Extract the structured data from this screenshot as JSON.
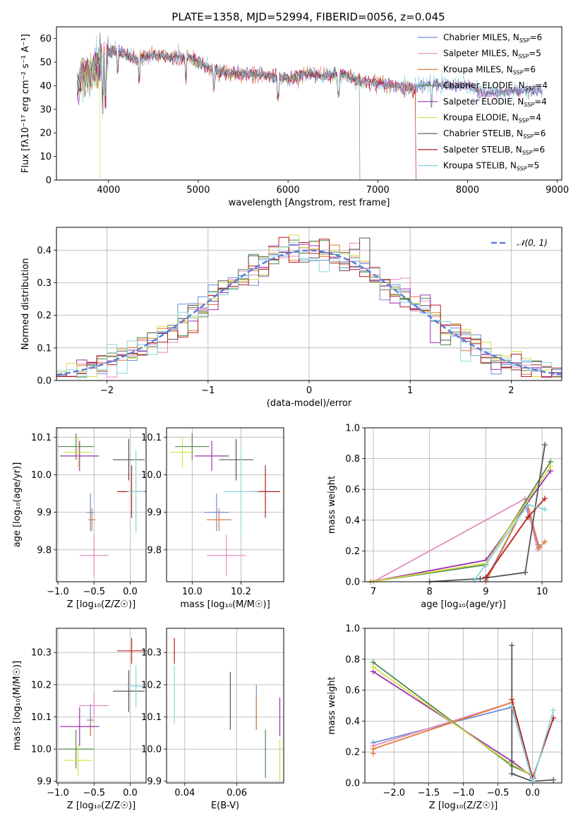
{
  "figure": {
    "title": "PLATE=1358, MJD=52994, FIBERID=0056, z=0.045"
  },
  "models": [
    {
      "name": "Chabrier MILES",
      "nssp": "6",
      "color": "#6a8fd4"
    },
    {
      "name": "Salpeter MILES",
      "nssp": "5",
      "color": "#e58bc0"
    },
    {
      "name": "Kroupa MILES",
      "nssp": "6",
      "color": "#e07b3c"
    },
    {
      "name": "Chabrier ELODIE",
      "nssp": "4",
      "color": "#4f8a4f"
    },
    {
      "name": "Salpeter ELODIE",
      "nssp": "4",
      "color": "#9b30b4"
    },
    {
      "name": "Kroupa ELODIE",
      "nssp": "4",
      "color": "#d8dd45"
    },
    {
      "name": "Chabrier STELIB",
      "nssp": "6",
      "color": "#555555"
    },
    {
      "name": "Salpeter STELIB",
      "nssp": "6",
      "color": "#b81c1c"
    },
    {
      "name": "Kroupa STELIB",
      "nssp": "5",
      "color": "#88d6dc"
    }
  ],
  "chart_data": [
    {
      "id": "spectrum",
      "type": "line",
      "title": "PLATE=1358, MJD=52994, FIBERID=0056, z=0.045",
      "xlabel": "wavelength [Angstrom, rest frame]",
      "ylabel": "Flux [fλ10⁻¹⁷ erg cm⁻² s⁻¹ A⁻¹]",
      "xlim": [
        3420,
        9050
      ],
      "ylim": [
        0,
        65
      ],
      "xticks": [
        4000,
        5000,
        6000,
        7000,
        8000,
        9000
      ],
      "yticks": [
        0,
        10,
        20,
        30,
        40,
        50,
        60
      ],
      "legend_position": "top-right",
      "continuum": [
        [
          3650,
          40
        ],
        [
          3700,
          44
        ],
        [
          3800,
          47
        ],
        [
          3900,
          50
        ],
        [
          4000,
          54
        ],
        [
          4100,
          55
        ],
        [
          4200,
          53
        ],
        [
          4300,
          51
        ],
        [
          4400,
          52
        ],
        [
          4500,
          53
        ],
        [
          4700,
          52
        ],
        [
          4900,
          52
        ],
        [
          5000,
          50
        ],
        [
          5200,
          46
        ],
        [
          5400,
          45
        ],
        [
          5600,
          45
        ],
        [
          5800,
          44
        ],
        [
          6000,
          43
        ],
        [
          6200,
          45
        ],
        [
          6400,
          44
        ],
        [
          6600,
          45
        ],
        [
          6800,
          42
        ],
        [
          7000,
          41
        ],
        [
          7200,
          40
        ],
        [
          7400,
          39
        ],
        [
          7600,
          41
        ],
        [
          7800,
          40
        ],
        [
          8000,
          40
        ],
        [
          8200,
          37
        ],
        [
          8400,
          37
        ],
        [
          8600,
          38
        ],
        [
          8800,
          38
        ]
      ],
      "dropouts": [
        {
          "model": "Kroupa ELODIE",
          "x": 3905
        },
        {
          "model": "Chabrier ELODIE",
          "x": 6800
        },
        {
          "model": "Salpeter STELIB",
          "x": 7420
        },
        {
          "model": "Kroupa MILES",
          "x": 7420
        }
      ]
    },
    {
      "id": "residuals",
      "type": "bar",
      "xlabel": "(data-model)/error",
      "ylabel": "Normed distribution",
      "xlim": [
        -2.5,
        2.5
      ],
      "ylim": [
        0,
        0.47
      ],
      "xticks": [
        -2,
        -1,
        0,
        1,
        2
      ],
      "yticks": [
        0.0,
        0.1,
        0.2,
        0.3,
        0.4
      ],
      "bin_width": 0.1,
      "reference_curve": "𝒩(0, 1)",
      "reference_color": "#5b7fd6",
      "legend_position": "top-right"
    },
    {
      "id": "age-vs-Z",
      "type": "scatter",
      "xlabel": "Z [log₁₀(Z/Z☉)]",
      "ylabel": "age  [log₁₀(age/yr)]",
      "xlim": [
        -1.02,
        0.22
      ],
      "ylim": [
        9.715,
        10.125
      ],
      "xticks": [
        -1.0,
        -0.5,
        0.0
      ],
      "xticklabels": [
        "−1.0",
        "−0.5",
        "0.0"
      ],
      "yticks": [
        9.8,
        9.9,
        10.0,
        10.1
      ],
      "points": [
        {
          "model": "Chabrier MILES",
          "x": -0.55,
          "xerr": 0.05,
          "y": 9.9,
          "yerr": 0.05
        },
        {
          "model": "Salpeter MILES",
          "x": -0.5,
          "xerr": 0.2,
          "y": 9.785,
          "yerr": 0.055
        },
        {
          "model": "Kroupa MILES",
          "x": -0.53,
          "xerr": 0.05,
          "y": 9.88,
          "yerr": 0.03
        },
        {
          "model": "Chabrier ELODIE",
          "x": -0.75,
          "xerr": 0.25,
          "y": 10.075,
          "yerr": 0.035
        },
        {
          "model": "Salpeter ELODIE",
          "x": -0.7,
          "xerr": 0.27,
          "y": 10.05,
          "yerr": 0.04
        },
        {
          "model": "Kroupa ELODIE",
          "x": -0.72,
          "xerr": 0.2,
          "y": 10.06,
          "yerr": 0.04
        },
        {
          "model": "Chabrier STELIB",
          "x": -0.02,
          "xerr": 0.22,
          "y": 10.04,
          "yerr": 0.055
        },
        {
          "model": "Salpeter STELIB",
          "x": 0.02,
          "xerr": 0.2,
          "y": 9.955,
          "yerr": 0.07
        },
        {
          "model": "Kroupa STELIB",
          "x": 0.08,
          "xerr": 0.12,
          "y": 9.955,
          "yerr": 0.11
        }
      ]
    },
    {
      "id": "age-vs-mass",
      "type": "scatter",
      "xlabel": "mass [log₁₀(M/M☉)]",
      "ylabel": "",
      "xlim": [
        9.895,
        10.375
      ],
      "ylim": [
        9.715,
        10.125
      ],
      "xticks": [
        10.0,
        10.2
      ],
      "xticklabels": [
        "10.0",
        "10.2"
      ],
      "yticks": [
        9.8,
        9.9,
        10.0,
        10.1
      ],
      "points": [
        {
          "model": "Chabrier MILES",
          "x": 10.1,
          "xerr": 0.05,
          "y": 9.9,
          "yerr": 0.05
        },
        {
          "model": "Salpeter MILES",
          "x": 10.14,
          "xerr": 0.08,
          "y": 9.785,
          "yerr": 0.055
        },
        {
          "model": "Kroupa MILES",
          "x": 10.11,
          "xerr": 0.05,
          "y": 9.88,
          "yerr": 0.03
        },
        {
          "model": "Chabrier ELODIE",
          "x": 10.0,
          "xerr": 0.07,
          "y": 10.075,
          "yerr": 0.035
        },
        {
          "model": "Salpeter ELODIE",
          "x": 10.08,
          "xerr": 0.07,
          "y": 10.05,
          "yerr": 0.04
        },
        {
          "model": "Kroupa ELODIE",
          "x": 9.96,
          "xerr": 0.05,
          "y": 10.06,
          "yerr": 0.04
        },
        {
          "model": "Chabrier STELIB",
          "x": 10.18,
          "xerr": 0.07,
          "y": 10.04,
          "yerr": 0.055
        },
        {
          "model": "Salpeter STELIB",
          "x": 10.3,
          "xerr": 0.06,
          "y": 9.955,
          "yerr": 0.07
        },
        {
          "model": "Kroupa STELIB",
          "x": 10.2,
          "xerr": 0.07,
          "y": 9.955,
          "yerr": 0.11
        }
      ]
    },
    {
      "id": "mass-weight-vs-age",
      "type": "line",
      "xlabel": "age  [log₁₀(age/yr)]",
      "ylabel": "mass weight",
      "xlim": [
        6.85,
        10.35
      ],
      "ylim": [
        0,
        1.0
      ],
      "xticks": [
        7,
        8,
        9,
        10
      ],
      "yticks": [
        0.0,
        0.2,
        0.4,
        0.6,
        0.8,
        1.0
      ],
      "series": [
        {
          "model": "Chabrier MILES",
          "points": [
            [
              9.0,
              0.01
            ],
            [
              9.7,
              0.5
            ],
            [
              9.93,
              0.24
            ]
          ]
        },
        {
          "model": "Salpeter MILES",
          "points": [
            [
              7.0,
              0.0
            ],
            [
              9.7,
              0.54
            ],
            [
              9.92,
              0.21
            ]
          ]
        },
        {
          "model": "Kroupa MILES",
          "points": [
            [
              9.0,
              0.0
            ],
            [
              9.73,
              0.52
            ],
            [
              9.95,
              0.22
            ],
            [
              10.05,
              0.26
            ]
          ]
        },
        {
          "model": "Chabrier ELODIE",
          "points": [
            [
              6.95,
              0.0
            ],
            [
              9.0,
              0.11
            ],
            [
              10.15,
              0.78
            ]
          ]
        },
        {
          "model": "Salpeter ELODIE",
          "points": [
            [
              6.95,
              0.0
            ],
            [
              9.0,
              0.14
            ],
            [
              10.15,
              0.72
            ]
          ]
        },
        {
          "model": "Kroupa ELODIE",
          "points": [
            [
              6.95,
              0.0
            ],
            [
              9.0,
              0.12
            ],
            [
              10.15,
              0.75
            ]
          ]
        },
        {
          "model": "Chabrier STELIB",
          "points": [
            [
              8.0,
              0.0
            ],
            [
              8.9,
              0.02
            ],
            [
              9.7,
              0.06
            ],
            [
              10.05,
              0.89
            ]
          ]
        },
        {
          "model": "Salpeter STELIB",
          "points": [
            [
              9.0,
              0.03
            ],
            [
              9.75,
              0.42
            ],
            [
              10.05,
              0.54
            ]
          ]
        },
        {
          "model": "Kroupa STELIB",
          "points": [
            [
              8.8,
              0.01
            ],
            [
              9.75,
              0.5
            ],
            [
              10.05,
              0.47
            ]
          ]
        }
      ]
    },
    {
      "id": "mass-vs-Z",
      "type": "scatter",
      "xlabel": "Z [log₁₀(Z/Z☉)]",
      "ylabel": "mass [log₁₀(M/M☉)]",
      "xlim": [
        -1.02,
        0.22
      ],
      "ylim": [
        9.895,
        10.375
      ],
      "xticks": [
        -1.0,
        -0.5,
        0.0
      ],
      "xticklabels": [
        "−1.0",
        "−0.5",
        "0.0"
      ],
      "yticks": [
        9.9,
        10.0,
        10.1,
        10.2,
        10.3
      ],
      "points": [
        {
          "model": "Chabrier MILES",
          "x": -0.55,
          "xerr": 0.05,
          "y": 10.09,
          "yerr": 0.05
        },
        {
          "model": "Salpeter MILES",
          "x": -0.5,
          "xerr": 0.2,
          "y": 10.135,
          "yerr": 0.04
        },
        {
          "model": "Kroupa MILES",
          "x": -0.55,
          "xerr": 0.05,
          "y": 10.07,
          "yerr": 0.03
        },
        {
          "model": "Chabrier ELODIE",
          "x": -0.75,
          "xerr": 0.25,
          "y": 10.0,
          "yerr": 0.06
        },
        {
          "model": "Salpeter ELODIE",
          "x": -0.7,
          "xerr": 0.27,
          "y": 10.07,
          "yerr": 0.06
        },
        {
          "model": "Kroupa ELODIE",
          "x": -0.72,
          "xerr": 0.2,
          "y": 9.965,
          "yerr": 0.05
        },
        {
          "model": "Chabrier STELIB",
          "x": -0.02,
          "xerr": 0.22,
          "y": 10.18,
          "yerr": 0.065
        },
        {
          "model": "Salpeter STELIB",
          "x": 0.02,
          "xerr": 0.2,
          "y": 10.305,
          "yerr": 0.04
        },
        {
          "model": "Kroupa STELIB",
          "x": 0.08,
          "xerr": 0.12,
          "y": 10.195,
          "yerr": 0.065
        }
      ]
    },
    {
      "id": "mass-vs-ebv",
      "type": "scatter",
      "xlabel": "E(B-V)",
      "ylabel": "",
      "xlim": [
        0.033,
        0.078
      ],
      "ylim": [
        9.895,
        10.375
      ],
      "xticks": [
        0.04,
        0.06
      ],
      "xticklabels": [
        "0.04",
        "0.06"
      ],
      "yticks": [
        9.9,
        10.0,
        10.1,
        10.2,
        10.3
      ],
      "points": [
        {
          "model": "Chabrier MILES",
          "x": 0.0675,
          "y": 10.13,
          "yerr": 0.07
        },
        {
          "model": "Kroupa MILES",
          "x": 0.0675,
          "y": 10.11,
          "yerr": 0.05
        },
        {
          "model": "Chabrier ELODIE",
          "x": 0.071,
          "y": 9.985,
          "yerr": 0.075
        },
        {
          "model": "Salpeter ELODIE",
          "x": 0.0765,
          "y": 10.1,
          "yerr": 0.06
        },
        {
          "model": "Kroupa ELODIE",
          "x": 0.0765,
          "y": 9.965,
          "yerr": 0.065
        },
        {
          "model": "Chabrier STELIB",
          "x": 0.0575,
          "y": 10.15,
          "yerr": 0.09
        },
        {
          "model": "Salpeter STELIB",
          "x": 0.036,
          "y": 10.305,
          "yerr": 0.04
        },
        {
          "model": "Kroupa STELIB",
          "x": 0.036,
          "y": 10.17,
          "yerr": 0.09
        }
      ]
    },
    {
      "id": "mass-weight-vs-Z",
      "type": "line",
      "xlabel": "Z [log₁₀(Z/Z☉)]",
      "ylabel": "mass weight",
      "xlim": [
        -2.42,
        0.42
      ],
      "ylim": [
        0,
        1.0
      ],
      "xticks": [
        -2.0,
        -1.5,
        -1.0,
        -0.5,
        0.0
      ],
      "xticklabels": [
        "−2.0",
        "−1.5",
        "−1.0",
        "−0.5",
        "0.0"
      ],
      "yticks": [
        0.0,
        0.2,
        0.4,
        0.6,
        0.8,
        1.0
      ],
      "series": [
        {
          "model": "Chabrier MILES",
          "points": [
            [
              -2.3,
              0.26
            ],
            [
              -0.3,
              0.49
            ],
            [
              0.0,
              0.01
            ]
          ]
        },
        {
          "model": "Salpeter MILES",
          "points": [
            [
              -2.3,
              0.24
            ],
            [
              -0.3,
              0.52
            ],
            [
              0.0,
              0.01
            ]
          ]
        },
        {
          "model": "Kroupa MILES",
          "points": [
            [
              -2.3,
              0.19
            ],
            [
              -2.3,
              0.22
            ],
            [
              -0.3,
              0.52
            ],
            [
              0.0,
              0.01
            ]
          ]
        },
        {
          "model": "Chabrier ELODIE",
          "points": [
            [
              -2.3,
              0.78
            ],
            [
              -0.3,
              0.11
            ],
            [
              0.0,
              0.05
            ]
          ]
        },
        {
          "model": "Salpeter ELODIE",
          "points": [
            [
              -2.3,
              0.72
            ],
            [
              -0.3,
              0.14
            ],
            [
              0.0,
              0.04
            ]
          ]
        },
        {
          "model": "Kroupa ELODIE",
          "points": [
            [
              -2.3,
              0.75
            ],
            [
              -0.3,
              0.12
            ],
            [
              0.0,
              0.05
            ]
          ]
        },
        {
          "model": "Chabrier STELIB",
          "points": [
            [
              -0.3,
              0.89
            ],
            [
              -0.3,
              0.06
            ],
            [
              0.0,
              0.01
            ],
            [
              0.3,
              0.02
            ]
          ]
        },
        {
          "model": "Salpeter STELIB",
          "points": [
            [
              -0.3,
              0.54
            ],
            [
              0.0,
              0.03
            ],
            [
              0.3,
              0.42
            ]
          ]
        },
        {
          "model": "Kroupa STELIB",
          "points": [
            [
              -0.3,
              0.5
            ],
            [
              0.0,
              0.01
            ],
            [
              0.3,
              0.47
            ]
          ]
        }
      ]
    }
  ]
}
